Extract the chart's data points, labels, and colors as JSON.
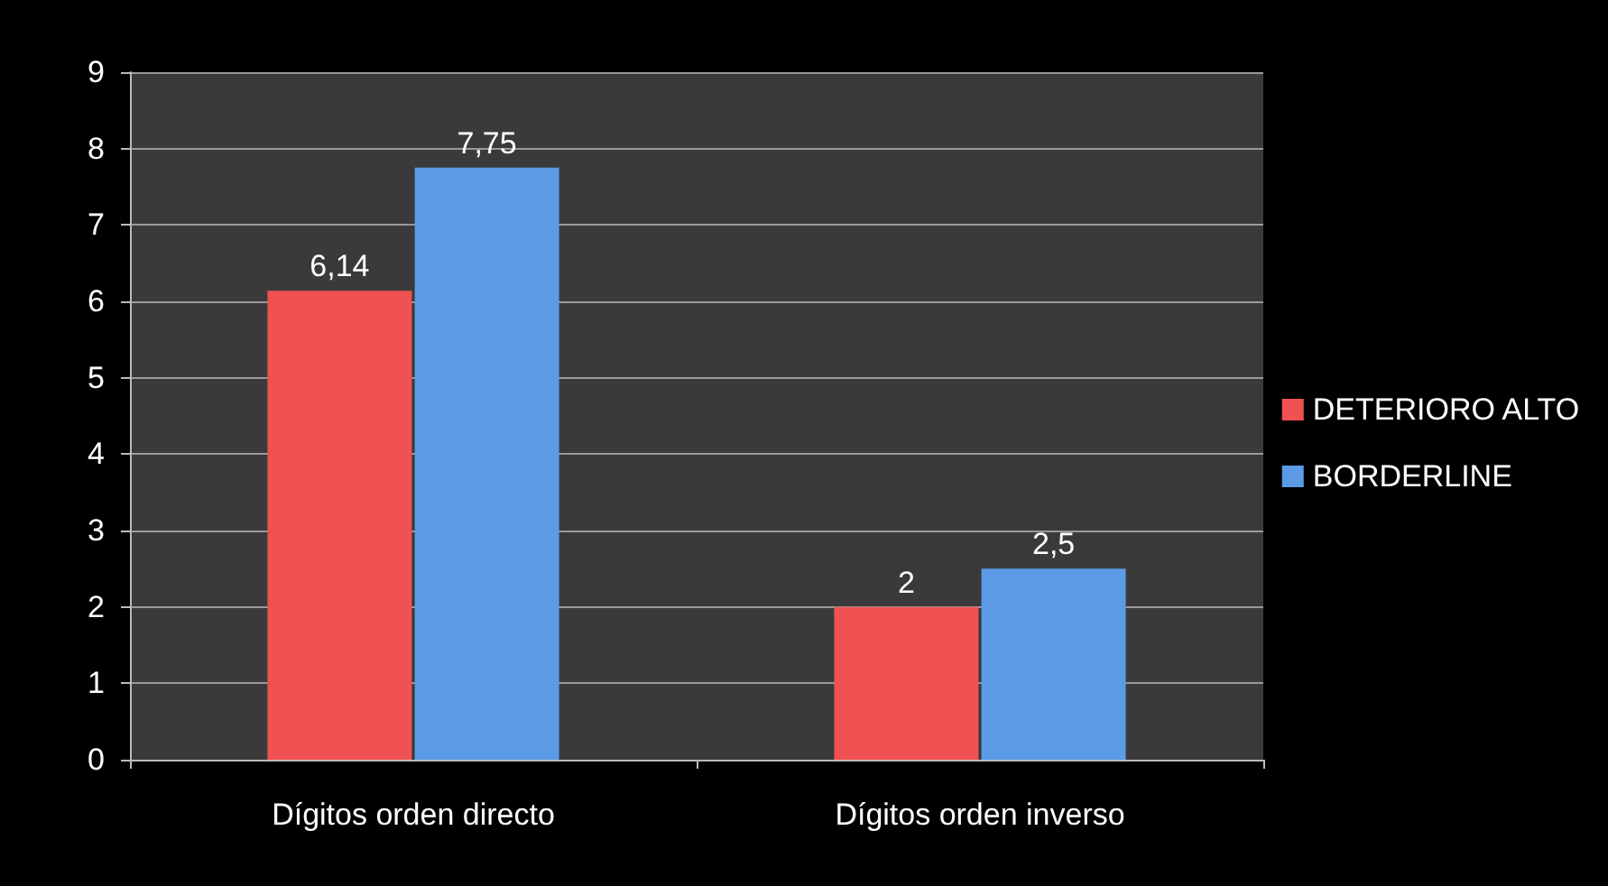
{
  "chart_data": {
    "type": "bar",
    "categories": [
      "Dígitos orden directo",
      "Dígitos orden inverso"
    ],
    "series": [
      {
        "name": "DETERIORO ALTO",
        "color": "#f05252",
        "values": [
          6.14,
          2
        ],
        "value_labels": [
          "6,14",
          "2"
        ]
      },
      {
        "name": "BORDERLINE",
        "color": "#5b9be6",
        "values": [
          7.75,
          2.5
        ],
        "value_labels": [
          "7,75",
          "2,5"
        ]
      }
    ],
    "ylim": [
      0,
      9
    ],
    "yticks": [
      0,
      1,
      2,
      3,
      4,
      5,
      6,
      7,
      8,
      9
    ],
    "grid": "y",
    "legend": "right"
  }
}
